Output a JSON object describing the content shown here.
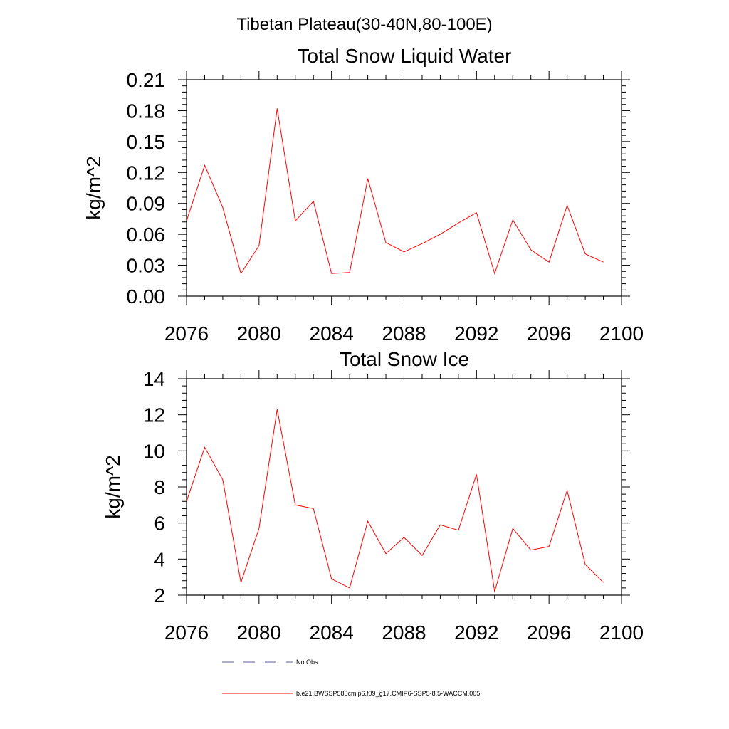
{
  "figure_title": "Tibetan Plateau(30-40N,80-100E)",
  "chart_data": [
    {
      "type": "line",
      "title": "Total Snow Liquid Water",
      "xlabel": "",
      "ylabel": "kg/m^2",
      "xlim": [
        2076,
        2100
      ],
      "ylim": [
        0,
        0.21
      ],
      "x_ticks": [
        2076,
        2080,
        2084,
        2088,
        2092,
        2096,
        2100
      ],
      "x_tick_labels": [
        "2076",
        "2080",
        "2084",
        "2088",
        "2092",
        "2096",
        "2100"
      ],
      "y_ticks": [
        0,
        0.03,
        0.06,
        0.09,
        0.12,
        0.15,
        0.18,
        0.21
      ],
      "y_tick_labels": [
        "0.00",
        "0.03",
        "0.06",
        "0.09",
        "0.12",
        "0.15",
        "0.18",
        "0.21"
      ],
      "series": [
        {
          "name": "b.e21.BWSSP585cmip6.f09_g17.CMIP6-SSP5-8.5-WACCM.005",
          "color": "#ff0000",
          "x": [
            2076,
            2077,
            2078,
            2079,
            2080,
            2081,
            2082,
            2083,
            2084,
            2085,
            2086,
            2087,
            2088,
            2089,
            2090,
            2091,
            2092,
            2093,
            2094,
            2095,
            2096,
            2097,
            2098,
            2099
          ],
          "y": [
            0.073,
            0.127,
            0.086,
            0.022,
            0.049,
            0.182,
            0.073,
            0.092,
            0.022,
            0.023,
            0.114,
            0.052,
            0.043,
            0.051,
            0.06,
            0.071,
            0.081,
            0.022,
            0.074,
            0.045,
            0.033,
            0.088,
            0.041,
            0.033
          ]
        }
      ]
    },
    {
      "type": "line",
      "title": "Total Snow Ice",
      "xlabel": "",
      "ylabel": "kg/m^2",
      "xlim": [
        2076,
        2100
      ],
      "ylim": [
        2,
        14
      ],
      "x_ticks": [
        2076,
        2080,
        2084,
        2088,
        2092,
        2096,
        2100
      ],
      "x_tick_labels": [
        "2076",
        "2080",
        "2084",
        "2088",
        "2092",
        "2096",
        "2100"
      ],
      "y_ticks": [
        2,
        4,
        6,
        8,
        10,
        12,
        14
      ],
      "y_tick_labels": [
        "2",
        "4",
        "6",
        "8",
        "10",
        "12",
        "14"
      ],
      "series": [
        {
          "name": "b.e21.BWSSP585cmip6.f09_g17.CMIP6-SSP5-8.5-WACCM.005",
          "color": "#ff0000",
          "x": [
            2076,
            2077,
            2078,
            2079,
            2080,
            2081,
            2082,
            2083,
            2084,
            2085,
            2086,
            2087,
            2088,
            2089,
            2090,
            2091,
            2092,
            2093,
            2094,
            2095,
            2096,
            2097,
            2098,
            2099
          ],
          "y": [
            7.2,
            10.2,
            8.4,
            2.7,
            5.7,
            12.3,
            7.0,
            6.8,
            2.9,
            2.4,
            6.1,
            4.3,
            5.2,
            4.2,
            5.9,
            5.6,
            8.7,
            2.2,
            5.7,
            4.5,
            4.7,
            7.8,
            3.7,
            2.7
          ]
        }
      ]
    }
  ],
  "legend": {
    "placement": "bottom",
    "items": [
      {
        "label": "No Obs",
        "color": "#5a5a9a",
        "style": "dashed"
      },
      {
        "label": "b.e21.BWSSP585cmip6.f09_g17.CMIP6-SSP5-8.5-WACCM.005",
        "color": "#ff0000",
        "style": "solid"
      }
    ]
  }
}
